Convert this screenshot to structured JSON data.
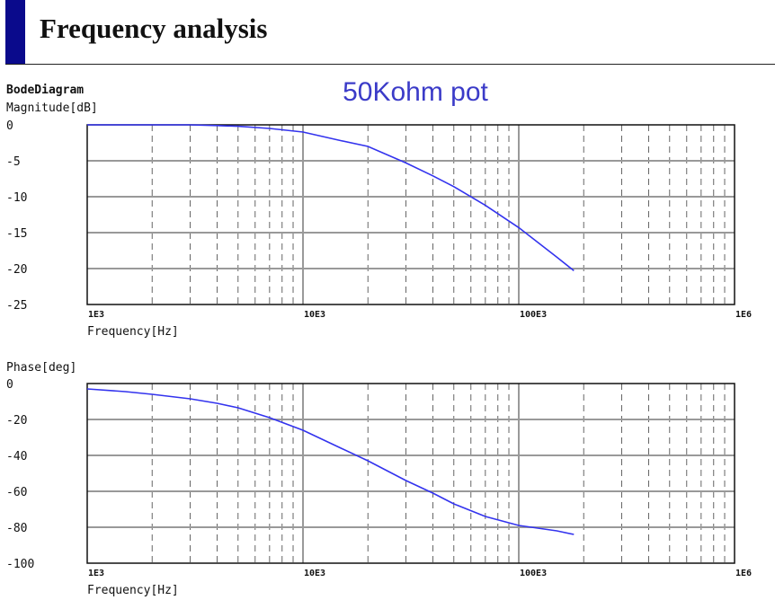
{
  "header": {
    "title": "Frequency analysis"
  },
  "overlay_note": "50Kohm pot",
  "colors": {
    "accent": "#0a0a8c",
    "curve": "#3333ee",
    "note": "#3b3bc8",
    "grid": "#999999",
    "minor_grid": "#777777"
  },
  "chart_data": [
    {
      "type": "line",
      "title": "BodeDiagram",
      "ylabel": "Magnitude[dB]",
      "xlabel": "Frequency[Hz]",
      "x_scale": "log",
      "xlim": [
        1000,
        1000000
      ],
      "ylim": [
        -25,
        0
      ],
      "y_ticks": [
        "0",
        "-5",
        "-10",
        "-15",
        "-20",
        "-25"
      ],
      "x_ticks": [
        "1E3",
        "10E3",
        "100E3",
        "1E6"
      ],
      "series": [
        {
          "x": [
            1000,
            1500,
            2000,
            3000,
            4000,
            5000,
            7000,
            10000,
            15000,
            20000,
            30000,
            40000,
            50000,
            70000,
            100000,
            150000,
            180000
          ],
          "y": [
            0,
            0,
            0,
            0,
            -0.1,
            -0.2,
            -0.5,
            -1.0,
            -2.2,
            -3.0,
            -5.3,
            -7.1,
            -8.6,
            -11.2,
            -14.3,
            -18.4,
            -20.3
          ]
        }
      ]
    },
    {
      "type": "line",
      "ylabel": "Phase[deg]",
      "xlabel": "Frequency[Hz]",
      "x_scale": "log",
      "xlim": [
        1000,
        1000000
      ],
      "ylim": [
        -100,
        0
      ],
      "y_ticks": [
        "0",
        "-20",
        "-40",
        "-60",
        "-80",
        "-100"
      ],
      "x_ticks": [
        "1E3",
        "10E3",
        "100E3",
        "1E6"
      ],
      "series": [
        {
          "x": [
            1000,
            1500,
            2000,
            3000,
            4000,
            5000,
            7000,
            10000,
            15000,
            20000,
            30000,
            40000,
            50000,
            70000,
            100000,
            150000,
            180000
          ],
          "y": [
            -3,
            -4.5,
            -6,
            -8.5,
            -11,
            -13.5,
            -19,
            -26,
            -36,
            -43,
            -54,
            -61,
            -67,
            -74,
            -79,
            -82,
            -84
          ]
        }
      ]
    }
  ]
}
